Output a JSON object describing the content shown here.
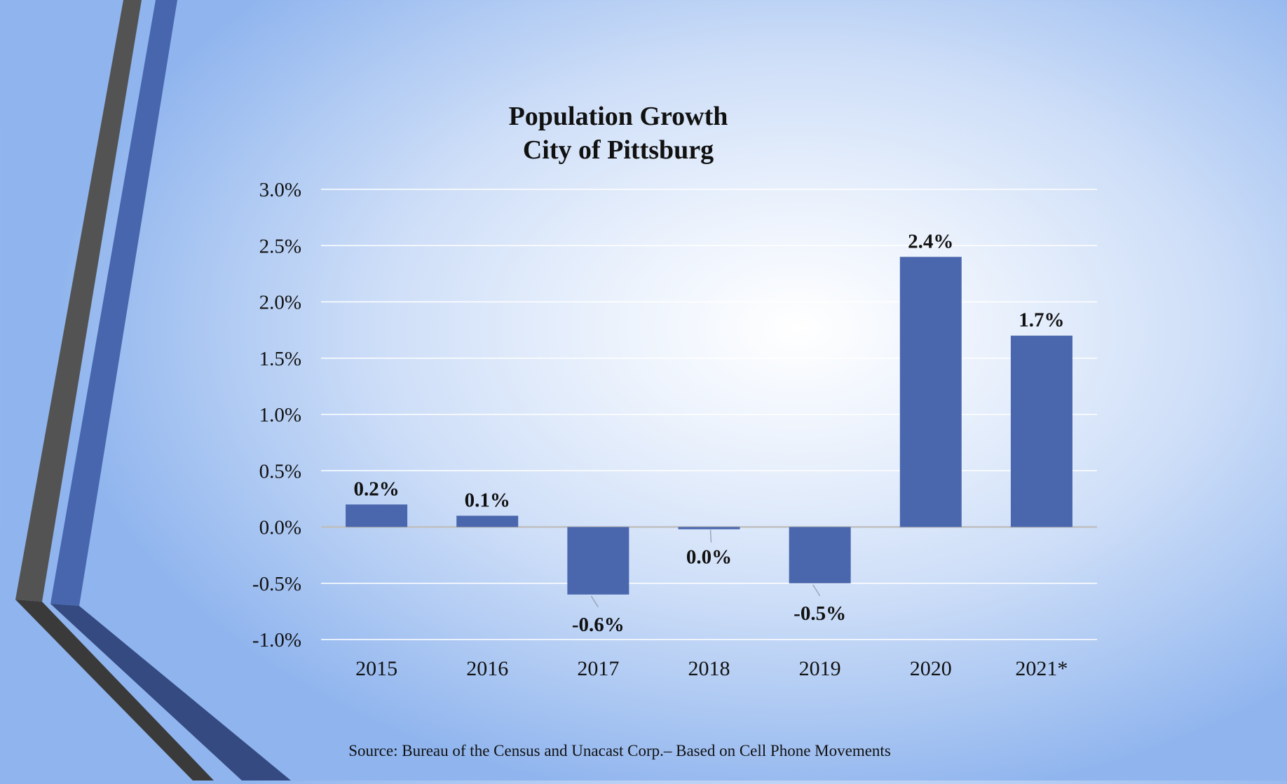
{
  "colors": {
    "bar": "#4a67ad",
    "stripe_dark": "#535353",
    "stripe_blue": "#4766ae",
    "stripe_dark_lower": "#3a3a3a",
    "stripe_blue_lower": "#344a80",
    "gridline": "#ffffff",
    "zero_line": "#bfbfbf",
    "text": "#111111"
  },
  "chart_data": {
    "type": "bar",
    "title_lines": [
      "Population Growth",
      "City of Pittsburg"
    ],
    "categories": [
      "2015",
      "2016",
      "2017",
      "2018",
      "2019",
      "2020",
      "2021*"
    ],
    "values": [
      0.2,
      0.1,
      -0.6,
      0.0,
      -0.5,
      2.4,
      1.7
    ],
    "display_values": [
      -0.02
    ],
    "data_labels": [
      "0.2%",
      "0.1%",
      "-0.6%",
      "0.0%",
      "-0.5%",
      "2.4%",
      "1.7%"
    ],
    "ylim": [
      -1.0,
      3.0
    ],
    "yticks": [
      3.0,
      2.5,
      2.0,
      1.5,
      1.0,
      0.5,
      0.0,
      -0.5,
      -1.0
    ],
    "ytick_labels": [
      "3.0%",
      "2.5%",
      "2.0%",
      "1.5%",
      "1.0%",
      "0.5%",
      "0.0%",
      "-0.5%",
      "-1.0%"
    ],
    "xlabel": "",
    "ylabel": "",
    "grid": true,
    "legend": "none"
  },
  "footer": {
    "source": "Source: Bureau of the Census and Unacast Corp.– Based on Cell Phone Movements"
  }
}
